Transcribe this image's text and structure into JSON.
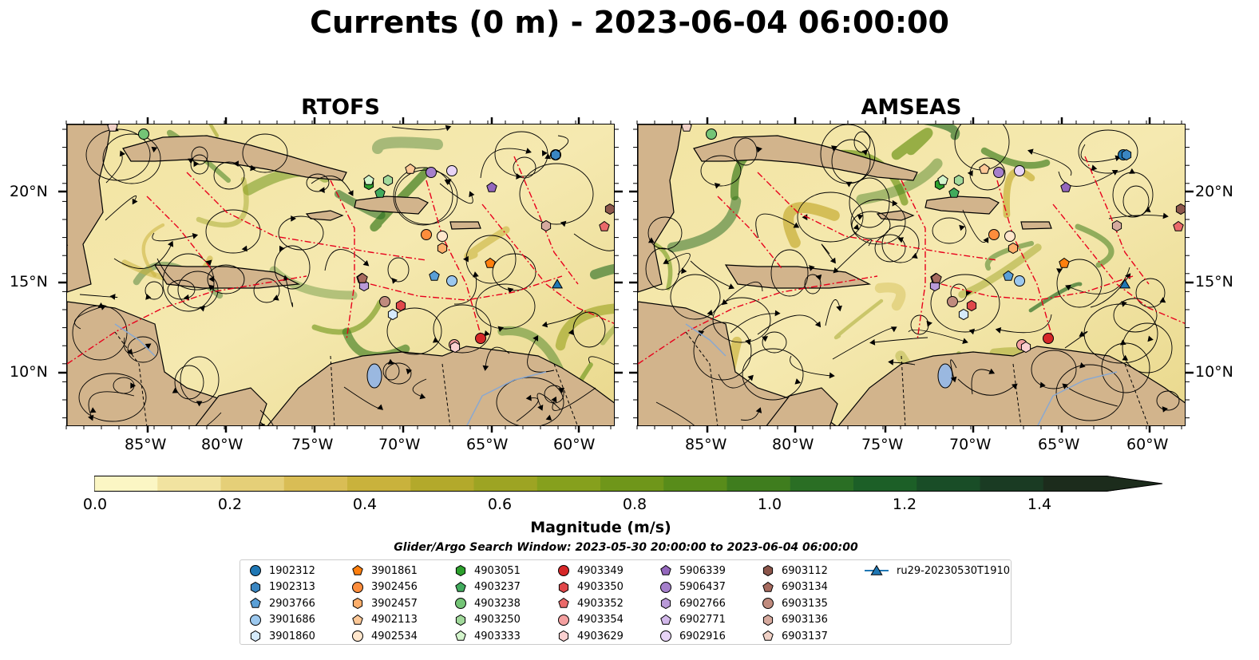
{
  "title": "Currents (0 m) - 2023-06-04 06:00:00",
  "panels": [
    {
      "title": "RTOFS"
    },
    {
      "title": "AMSEAS"
    }
  ],
  "lon_ticks": [
    "85°W",
    "80°W",
    "75°W",
    "70°W",
    "65°W",
    "60°W"
  ],
  "lat_ticks": [
    "20°N",
    "15°N",
    "10°N"
  ],
  "colorbar": {
    "label": "Magnitude (m/s)",
    "ticks": [
      "0.0",
      "0.2",
      "0.4",
      "0.6",
      "0.8",
      "1.0",
      "1.2",
      "1.4"
    ],
    "range": [
      0,
      1.6
    ],
    "extend": "max",
    "colors": [
      "#fbf6c4",
      "#f1e3a0",
      "#e5cf78",
      "#d9bd55",
      "#c9b23c",
      "#b3a92b",
      "#9da423",
      "#86a01d",
      "#6f961a",
      "#588c1a",
      "#3f7d1e",
      "#2a6e24",
      "#1c5f27",
      "#194d27",
      "#1a3b23",
      "#1c2c1c"
    ]
  },
  "search_window": "Glider/Argo Search Window: 2023-05-30 20:00:00 to 2023-06-04 06:00:00",
  "legend": [
    {
      "label": "1902312",
      "marker": "circle",
      "color": "#1f77b4"
    },
    {
      "label": "1902313",
      "marker": "hexagon",
      "color": "#3a86c2"
    },
    {
      "label": "2903766",
      "marker": "pentagon",
      "color": "#5a9fd6"
    },
    {
      "label": "3901686",
      "marker": "circle",
      "color": "#9cc8ee"
    },
    {
      "label": "3901860",
      "marker": "hexagon",
      "color": "#d5eafb"
    },
    {
      "label": "3901861",
      "marker": "pentagon",
      "color": "#ff7f0e"
    },
    {
      "label": "3902456",
      "marker": "circle",
      "color": "#fd8d3c"
    },
    {
      "label": "3902457",
      "marker": "hexagon",
      "color": "#fdae6b"
    },
    {
      "label": "4902113",
      "marker": "pentagon",
      "color": "#fdc897"
    },
    {
      "label": "4902534",
      "marker": "circle",
      "color": "#ffe6cc"
    },
    {
      "label": "4903051",
      "marker": "hexagon",
      "color": "#2ca02c"
    },
    {
      "label": "4903237",
      "marker": "pentagon",
      "color": "#41ab5d"
    },
    {
      "label": "4903238",
      "marker": "circle",
      "color": "#74c476"
    },
    {
      "label": "4903250",
      "marker": "hexagon",
      "color": "#a1d99b"
    },
    {
      "label": "4903333",
      "marker": "pentagon",
      "color": "#d4f5cc"
    },
    {
      "label": "4903349",
      "marker": "circle",
      "color": "#d62728"
    },
    {
      "label": "4903350",
      "marker": "hexagon",
      "color": "#e0474a"
    },
    {
      "label": "4903352",
      "marker": "pentagon",
      "color": "#ea6a6a"
    },
    {
      "label": "4903354",
      "marker": "circle",
      "color": "#f4a0a0"
    },
    {
      "label": "4903629",
      "marker": "hexagon",
      "color": "#fbd0d0"
    },
    {
      "label": "5906339",
      "marker": "pentagon",
      "color": "#9467bd"
    },
    {
      "label": "5906437",
      "marker": "circle",
      "color": "#a57fcb"
    },
    {
      "label": "6902766",
      "marker": "hexagon",
      "color": "#b99ad8"
    },
    {
      "label": "6902771",
      "marker": "pentagon",
      "color": "#d2b8ea"
    },
    {
      "label": "6902916",
      "marker": "circle",
      "color": "#e8d4f6"
    },
    {
      "label": "6903112",
      "marker": "hexagon",
      "color": "#8c564b"
    },
    {
      "label": "6903134",
      "marker": "pentagon",
      "color": "#a76b5f"
    },
    {
      "label": "6903135",
      "marker": "circle",
      "color": "#c08b7e"
    },
    {
      "label": "6903136",
      "marker": "hexagon",
      "color": "#d6aa9e"
    },
    {
      "label": "6903137",
      "marker": "pentagon",
      "color": "#f0d1c6"
    },
    {
      "label": "ru29-20230530T1910",
      "marker": "triangle-line",
      "color": "#1f77b4"
    }
  ],
  "colors": {
    "land": "#d2b48c",
    "lakes": "#9ab8e0",
    "eez": "#e8001c"
  }
}
